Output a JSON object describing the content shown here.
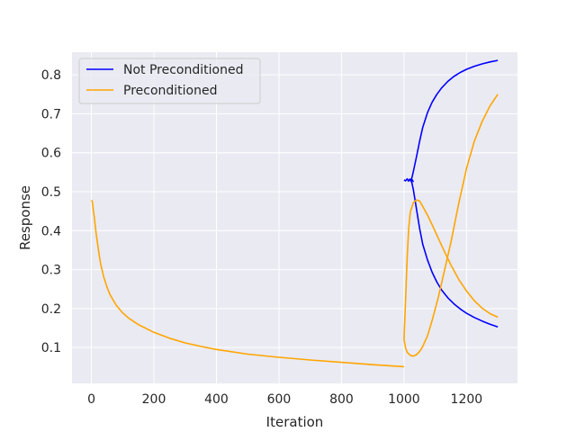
{
  "chart_data": {
    "type": "line",
    "xlabel": "Iteration",
    "ylabel": "Response",
    "xlim": [
      -62,
      1363
    ],
    "ylim": [
      0.008,
      0.858
    ],
    "xticks": [
      0,
      200,
      400,
      600,
      800,
      1000,
      1200
    ],
    "yticks": [
      0.1,
      0.2,
      0.3,
      0.4,
      0.5,
      0.6,
      0.7,
      0.8
    ],
    "xtick_labels": [
      "0",
      "200",
      "400",
      "600",
      "800",
      "1000",
      "1200"
    ],
    "ytick_labels": [
      "0.1",
      "0.2",
      "0.3",
      "0.4",
      "0.5",
      "0.6",
      "0.7",
      "0.8"
    ],
    "grid": true,
    "legend_position": "top-left",
    "series": [
      {
        "name": "Not Preconditioned",
        "color": "#0000ff",
        "segments": [
          {
            "x": [
              1000,
              1005,
              1010,
              1014,
              1018,
              1022,
              1026,
              1030
            ],
            "y": [
              0.53,
              0.528,
              0.533,
              0.527,
              0.532,
              0.528,
              0.531,
              0.525
            ]
          },
          {
            "x": [
              1020,
              1025,
              1030,
              1040,
              1050,
              1060,
              1075,
              1090,
              1105,
              1120,
              1140,
              1160,
              1180,
              1200,
              1225,
              1250,
              1275,
              1300
            ],
            "y": [
              0.531,
              0.523,
              0.505,
              0.455,
              0.405,
              0.365,
              0.325,
              0.293,
              0.268,
              0.248,
              0.228,
              0.212,
              0.199,
              0.188,
              0.177,
              0.168,
              0.16,
              0.153
            ]
          },
          {
            "x": [
              1020,
              1025,
              1030,
              1040,
              1050,
              1060,
              1075,
              1090,
              1105,
              1120,
              1140,
              1160,
              1180,
              1200,
              1225,
              1250,
              1275,
              1300
            ],
            "y": [
              0.528,
              0.535,
              0.552,
              0.59,
              0.63,
              0.665,
              0.703,
              0.73,
              0.75,
              0.766,
              0.783,
              0.796,
              0.806,
              0.814,
              0.822,
              0.828,
              0.833,
              0.837
            ]
          }
        ]
      },
      {
        "name": "Preconditioned",
        "color": "#ffa500",
        "segments": [
          {
            "x": [
              0,
              3,
              6,
              10,
              15,
              20,
              25,
              30,
              40,
              50,
              60,
              80,
              100,
              120,
              150,
              200,
              250,
              300,
              350,
              400,
              500,
              600,
              700,
              800,
              900,
              1000
            ],
            "y": [
              0.478,
              0.475,
              0.455,
              0.43,
              0.395,
              0.365,
              0.338,
              0.313,
              0.28,
              0.255,
              0.235,
              0.208,
              0.189,
              0.175,
              0.159,
              0.139,
              0.124,
              0.112,
              0.103,
              0.095,
              0.083,
              0.075,
              0.068,
              0.062,
              0.056,
              0.051
            ]
          },
          {
            "x": [
              1000,
              1005,
              1010,
              1015,
              1020,
              1030,
              1040,
              1050,
              1060,
              1075,
              1090,
              1110,
              1130,
              1150,
              1175,
              1200,
              1225,
              1250,
              1275,
              1300
            ],
            "y": [
              0.12,
              0.22,
              0.33,
              0.405,
              0.448,
              0.472,
              0.479,
              0.476,
              0.462,
              0.44,
              0.415,
              0.38,
              0.345,
              0.312,
              0.275,
              0.245,
              0.22,
              0.201,
              0.187,
              0.178
            ]
          },
          {
            "x": [
              1000,
              1005,
              1010,
              1020,
              1030,
              1040,
              1050,
              1060,
              1075,
              1090,
              1110,
              1130,
              1150,
              1175,
              1200,
              1225,
              1250,
              1275,
              1300
            ],
            "y": [
              0.12,
              0.1,
              0.088,
              0.08,
              0.078,
              0.082,
              0.09,
              0.103,
              0.13,
              0.17,
              0.23,
              0.3,
              0.37,
              0.47,
              0.56,
              0.63,
              0.68,
              0.72,
              0.75
            ]
          }
        ]
      }
    ]
  }
}
